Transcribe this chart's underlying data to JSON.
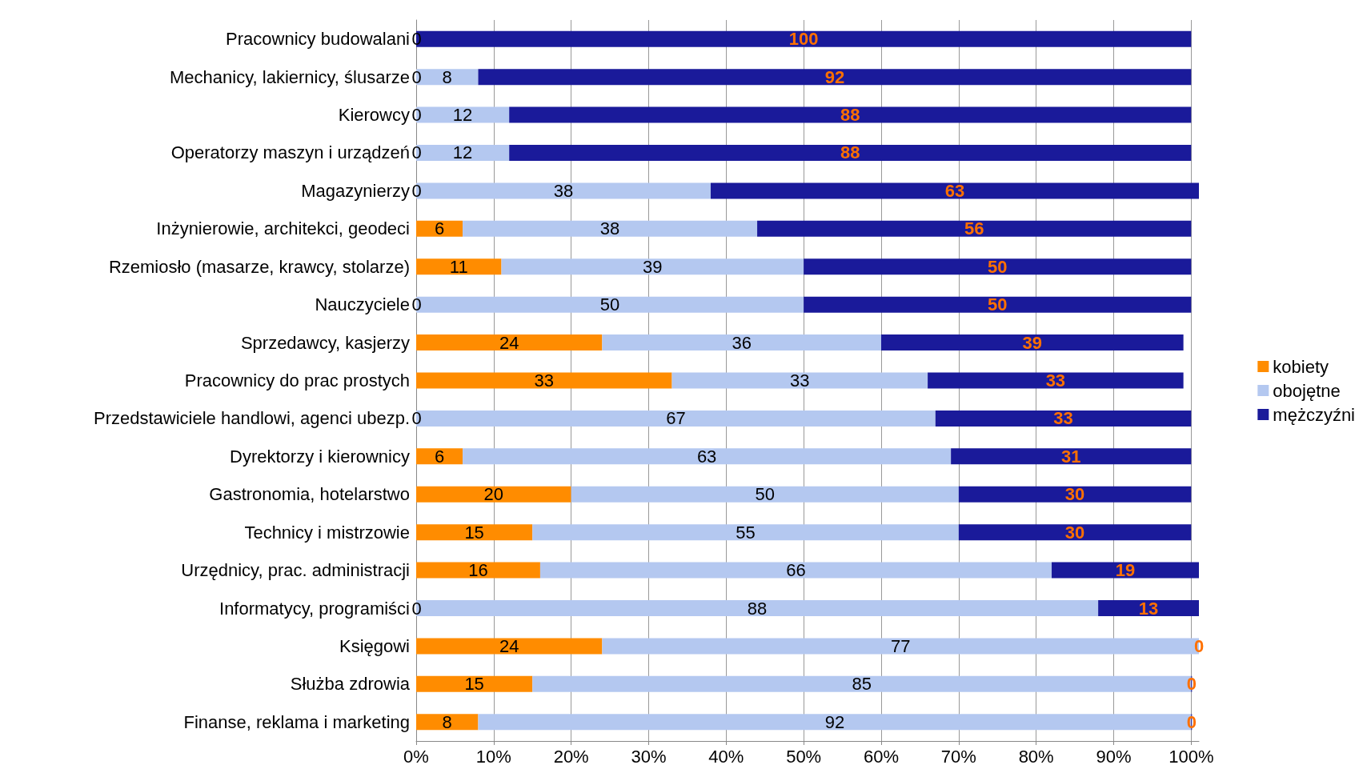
{
  "chart_data": {
    "type": "bar",
    "orientation": "horizontal",
    "stacked": true,
    "grid": "x",
    "legend": "right",
    "categories": [
      "Pracownicy budowalani",
      "Mechanicy, lakiernicy, ślusarze",
      "Kierowcy",
      "Operatorzy maszyn i urządzeń",
      "Magazynierzy",
      "Inżynierowie, architekci, geodeci",
      "Rzemiosło (masarze, krawcy, stolarze)",
      "Nauczyciele",
      "Sprzedawcy, kasjerzy",
      "Pracownicy do prac prostych",
      "Przedstawiciele handlowi, agenci ubezp.",
      "Dyrektorzy i kierownicy",
      "Gastronomia, hotelarstwo",
      "Technicy i mistrzowie",
      "Urzędnicy, prac. administracji",
      "Informatycy, programiści",
      "Księgowi",
      "Służba zdrowia",
      "Finanse, reklama i marketing"
    ],
    "series": [
      {
        "name": "kobiety",
        "color": "#ff8c00",
        "values": [
          0,
          0,
          0,
          0,
          0,
          6,
          11,
          0,
          24,
          33,
          0,
          6,
          20,
          15,
          16,
          0,
          24,
          15,
          8
        ],
        "value_labels": [
          "0",
          "0",
          "0",
          "0",
          "0",
          "6",
          "11",
          "0",
          "24",
          "33",
          "0",
          "6",
          "20",
          "15",
          "16",
          "0",
          "24",
          "15",
          "8"
        ]
      },
      {
        "name": "obojętne",
        "color": "#b4c8f0",
        "values": [
          0,
          8,
          12,
          12,
          38,
          38,
          39,
          50,
          36,
          33,
          67,
          63,
          50,
          55,
          66,
          88,
          77,
          85,
          92
        ],
        "value_labels": [
          null,
          "8",
          "12",
          "12",
          "38",
          "38",
          "39",
          "50",
          "36",
          "33",
          "67",
          "63",
          "50",
          "55",
          "66",
          "88",
          "77",
          "85",
          "92"
        ]
      },
      {
        "name": "mężczyźni",
        "color": "#1a1a9a",
        "values": [
          100,
          92,
          88,
          88,
          63,
          56,
          50,
          50,
          39,
          33,
          33,
          31,
          30,
          30,
          19,
          13,
          0,
          0,
          0
        ],
        "value_labels": [
          "100",
          "92",
          "88",
          "88",
          "63",
          "56",
          "50",
          "50",
          "39",
          "33",
          "33",
          "31",
          "30",
          "30",
          "19",
          "13",
          "0",
          "0",
          "0"
        ]
      }
    ],
    "xlim": [
      0,
      101
    ],
    "xticks": [
      {
        "value": 0,
        "label": "0%"
      },
      {
        "value": 10,
        "label": "10%"
      },
      {
        "value": 20,
        "label": "20%"
      },
      {
        "value": 30,
        "label": "30%"
      },
      {
        "value": 40,
        "label": "40%"
      },
      {
        "value": 50,
        "label": "50%"
      },
      {
        "value": 60,
        "label": "60%"
      },
      {
        "value": 70,
        "label": "70%"
      },
      {
        "value": 80,
        "label": "80%"
      },
      {
        "value": 90,
        "label": "90%"
      },
      {
        "value": 100,
        "label": "100%"
      }
    ]
  }
}
